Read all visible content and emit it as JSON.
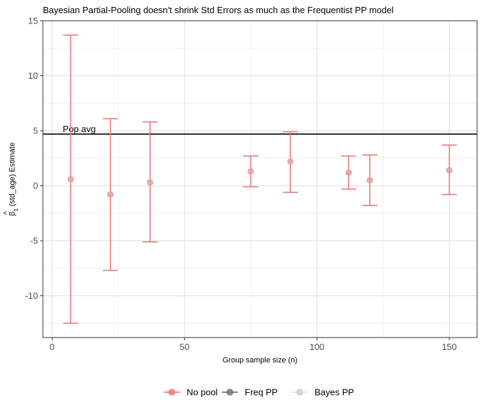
{
  "chart_data": {
    "type": "scatter",
    "title": "Bayesian Partial-Pooling doesn't shrink Std Errors as much as the Frequentist PP model",
    "xlabel": "Group sample size (n)",
    "ylabel": "(std_age) Estimate",
    "ylabel_symbol": "β",
    "ylabel_hat": "^",
    "ylabel_sub": "1",
    "xlim": [
      -3.5,
      160.5
    ],
    "ylim": [
      -13.8,
      15
    ],
    "x_ticks": [
      0,
      50,
      100,
      150
    ],
    "y_ticks": [
      -10,
      -5,
      0,
      5,
      10,
      15
    ],
    "x_tick_labels": [
      "0",
      "50",
      "100",
      "150"
    ],
    "y_tick_labels": [
      "-10",
      "-5",
      "0",
      "5",
      "10",
      "15"
    ],
    "grid": true,
    "legend_position": "bottom",
    "hline": {
      "y": 4.7,
      "label": "Pop avg",
      "color": "#000000"
    },
    "legend": [
      {
        "name": "No pool",
        "color": "#e87a7a",
        "marker_opacity": 0.8,
        "line_style": "solid"
      },
      {
        "name": "Freq PP",
        "color": "#7a6e78",
        "marker_opacity": 0.8,
        "line_style": "solid"
      },
      {
        "name": "Bayes PP",
        "color": "#cfc8cc",
        "marker_opacity": 0.8,
        "line_style": "dotted"
      }
    ],
    "series": [
      {
        "name": "No pool",
        "color": "#e87a7a",
        "points": [
          {
            "x": 7,
            "y": 0.6,
            "ymin": -12.5,
            "ymax": 13.7
          },
          {
            "x": 22,
            "y": -0.8,
            "ymin": -7.7,
            "ymax": 6.1
          },
          {
            "x": 37,
            "y": 0.3,
            "ymin": -5.1,
            "ymax": 5.8
          },
          {
            "x": 75,
            "y": 1.3,
            "ymin": -0.1,
            "ymax": 2.7
          },
          {
            "x": 90,
            "y": 2.2,
            "ymin": -0.6,
            "ymax": 4.9
          },
          {
            "x": 112,
            "y": 1.2,
            "ymin": -0.3,
            "ymax": 2.7
          },
          {
            "x": 120,
            "y": 0.5,
            "ymin": -1.8,
            "ymax": 2.8
          },
          {
            "x": 150,
            "y": 1.4,
            "ymin": -0.8,
            "ymax": 3.7
          }
        ]
      }
    ]
  }
}
